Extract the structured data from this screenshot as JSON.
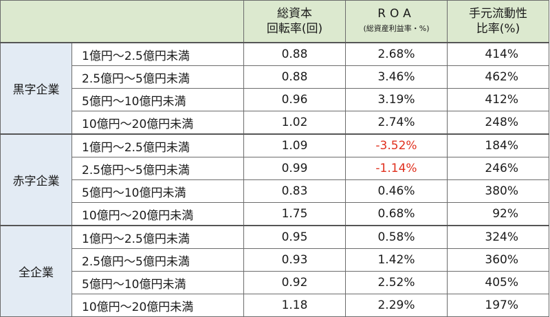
{
  "header": {
    "turnover_line1": "総資本",
    "turnover_line2": "回転率(回)",
    "roa_line1": "ROA",
    "roa_line2": "(総資産利益率・%)",
    "liquidity_line1": "手元流動性",
    "liquidity_line2": "比率(%)"
  },
  "groups": [
    {
      "label": "黒字企業",
      "rows": [
        {
          "band": "1億円〜2.5億円未満",
          "turnover": "0.88",
          "roa": "2.68%",
          "roa_negative": false,
          "liquidity": "414%"
        },
        {
          "band": "2.5億円〜5億円未満",
          "turnover": "0.88",
          "roa": "3.46%",
          "roa_negative": false,
          "liquidity": "462%"
        },
        {
          "band": "5億円〜10億円未満",
          "turnover": "0.96",
          "roa": "3.19%",
          "roa_negative": false,
          "liquidity": "412%"
        },
        {
          "band": "10億円〜20億円未満",
          "turnover": "1.02",
          "roa": "2.74%",
          "roa_negative": false,
          "liquidity": "248%"
        }
      ]
    },
    {
      "label": "赤字企業",
      "rows": [
        {
          "band": "1億円〜2.5億円未満",
          "turnover": "1.09",
          "roa": "-3.52%",
          "roa_negative": true,
          "liquidity": "184%"
        },
        {
          "band": "2.5億円〜5億円未満",
          "turnover": "0.99",
          "roa": "-1.14%",
          "roa_negative": true,
          "liquidity": "246%"
        },
        {
          "band": "5億円〜10億円未満",
          "turnover": "0.83",
          "roa": "0.46%",
          "roa_negative": false,
          "liquidity": "380%"
        },
        {
          "band": "10億円〜20億円未満",
          "turnover": "1.75",
          "roa": "0.68%",
          "roa_negative": false,
          "liquidity": "92%"
        }
      ]
    },
    {
      "label": "全企業",
      "rows": [
        {
          "band": "1億円〜2.5億円未満",
          "turnover": "0.95",
          "roa": "0.58%",
          "roa_negative": false,
          "liquidity": "324%"
        },
        {
          "band": "2.5億円〜5億円未満",
          "turnover": "0.93",
          "roa": "1.42%",
          "roa_negative": false,
          "liquidity": "360%"
        },
        {
          "band": "5億円〜10億円未満",
          "turnover": "0.92",
          "roa": "2.52%",
          "roa_negative": false,
          "liquidity": "405%"
        },
        {
          "band": "10億円〜20億円未満",
          "turnover": "1.18",
          "roa": "2.29%",
          "roa_negative": false,
          "liquidity": "197%"
        }
      ]
    }
  ],
  "colors": {
    "header_bg": "#dce9cf",
    "group_bg": "#e3ebf4",
    "negative_text": "#e0301e"
  }
}
